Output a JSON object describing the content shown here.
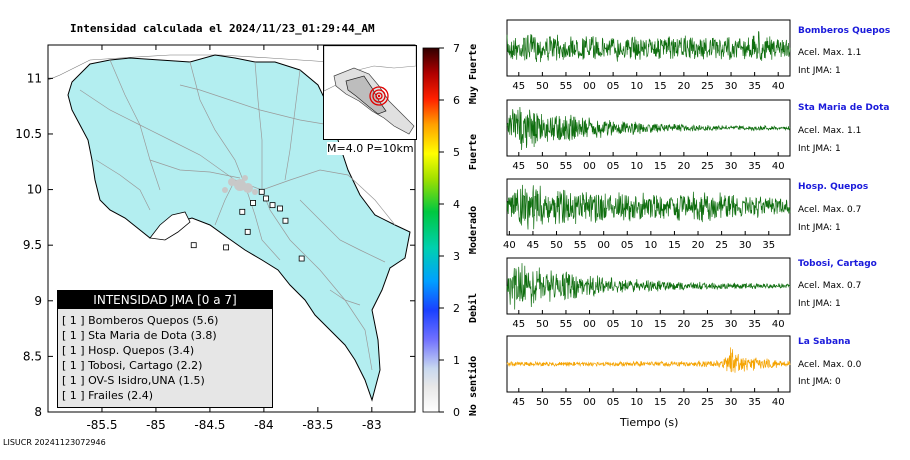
{
  "map": {
    "title": "Intensidad calculada el 2024/11/23_01:29:44_AM",
    "footer_id": "LISUCR 20241123072946",
    "inset_caption": "M=4.0 P=10km",
    "colors": {
      "land": "#b3eef0",
      "sea": "#ffffff",
      "roads": "#9a9a9a",
      "border": "#000000"
    }
  },
  "legend": {
    "title": "INTENSIDAD JMA [0 a 7]",
    "items": [
      "[ 1 ]  Bomberos Quepos (5.6)",
      "[ 1 ]  Sta Maria de Dota (3.8)",
      "[ 1 ]  Hosp. Quepos (3.4)",
      "[ 1 ]  Tobosi, Cartago (2.2)",
      "[ 1 ]  OV-S Isidro,UNA (1.5)",
      "[ 1 ]  Frailes (2.4)"
    ]
  },
  "colorbar": {
    "ticks": [
      "0",
      "1",
      "2",
      "3",
      "4",
      "5",
      "6",
      "7"
    ],
    "labels": [
      {
        "text": "No sentido",
        "value": 0.5
      },
      {
        "text": "Debil",
        "value": 2
      },
      {
        "text": "Moderado",
        "value": 3.5
      },
      {
        "text": "Fuerte",
        "value": 5
      },
      {
        "text": "Muy Fuerte",
        "value": 6.5
      }
    ]
  },
  "chart_data": [
    {
      "type": "scatter",
      "title": "Intensidad calculada el 2024/11/23_01:29:44_AM",
      "xlim": [
        -86.0,
        -82.6
      ],
      "ylim": [
        8.0,
        11.3
      ],
      "x_ticks": [
        "-85.5",
        "-85",
        "-84.5",
        "-84",
        "-83.5",
        "-83"
      ],
      "x_tick_values": [
        -85.5,
        -85.0,
        -84.5,
        -84.0,
        -83.5,
        -83.0
      ],
      "y_ticks": [
        "8",
        "8.5",
        "9",
        "9.5",
        "10",
        "10.5",
        "11"
      ],
      "y_tick_values": [
        8,
        8.5,
        9,
        9.5,
        10,
        10.5,
        11
      ],
      "stations": [
        {
          "lon": -84.02,
          "lat": 9.98
        },
        {
          "lon": -83.98,
          "lat": 9.92
        },
        {
          "lon": -84.1,
          "lat": 9.88
        },
        {
          "lon": -83.92,
          "lat": 9.86
        },
        {
          "lon": -83.85,
          "lat": 9.83
        },
        {
          "lon": -84.2,
          "lat": 9.8
        },
        {
          "lon": -83.8,
          "lat": 9.72
        },
        {
          "lon": -84.15,
          "lat": 9.62
        },
        {
          "lon": -84.65,
          "lat": 9.5
        },
        {
          "lon": -84.35,
          "lat": 9.48
        },
        {
          "lon": -83.65,
          "lat": 9.38
        }
      ]
    },
    {
      "type": "line",
      "station": "Bomberos Quepos",
      "acc_text": "Acel. Max. 1.1",
      "int_text": "Int JMA: 1",
      "color": "#0f6e0f",
      "x_ticks": [
        "45",
        "50",
        "55",
        "00",
        "05",
        "10",
        "15",
        "20",
        "25",
        "30",
        "35",
        "40"
      ],
      "x_tick_values": [
        45,
        50,
        55,
        60,
        65,
        70,
        75,
        80,
        85,
        90,
        95,
        100
      ],
      "xlim": [
        42.5,
        102.5
      ],
      "envelope": [
        [
          42.5,
          0.55
        ],
        [
          46,
          0.6
        ],
        [
          55,
          0.5
        ],
        [
          65,
          0.55
        ],
        [
          75,
          0.5
        ],
        [
          85,
          0.5
        ],
        [
          95,
          0.55
        ],
        [
          96,
          1.0
        ],
        [
          97,
          0.5
        ],
        [
          102.5,
          0.35
        ]
      ]
    },
    {
      "type": "line",
      "station": "Sta Maria de Dota",
      "acc_text": "Acel. Max. 1.1",
      "int_text": "Int JMA: 1",
      "color": "#0f6e0f",
      "x_ticks": [
        "45",
        "50",
        "55",
        "00",
        "05",
        "10",
        "15",
        "20",
        "25",
        "30",
        "35",
        "40"
      ],
      "x_tick_values": [
        45,
        50,
        55,
        60,
        65,
        70,
        75,
        80,
        85,
        90,
        95,
        100
      ],
      "xlim": [
        42.5,
        102.5
      ],
      "envelope": [
        [
          42.5,
          0.2
        ],
        [
          43.5,
          1.0
        ],
        [
          48,
          0.9
        ],
        [
          55,
          0.6
        ],
        [
          65,
          0.35
        ],
        [
          75,
          0.2
        ],
        [
          85,
          0.12
        ],
        [
          102.5,
          0.08
        ]
      ]
    },
    {
      "type": "line",
      "station": "Hosp. Quepos",
      "acc_text": "Acel. Max. 0.7",
      "int_text": "Int JMA: 1",
      "color": "#0f6e0f",
      "x_ticks": [
        "40",
        "45",
        "50",
        "55",
        "00",
        "05",
        "10",
        "15",
        "20",
        "25",
        "30",
        "35"
      ],
      "x_tick_values": [
        40,
        45,
        50,
        55,
        60,
        65,
        70,
        75,
        80,
        85,
        90,
        95
      ],
      "xlim": [
        39.5,
        99.5
      ],
      "envelope": [
        [
          39.5,
          0.3
        ],
        [
          40.5,
          0.9
        ],
        [
          45,
          1.0
        ],
        [
          55,
          0.7
        ],
        [
          65,
          0.6
        ],
        [
          75,
          0.55
        ],
        [
          80,
          0.65
        ],
        [
          90,
          0.5
        ],
        [
          99.5,
          0.35
        ]
      ]
    },
    {
      "type": "line",
      "station": "Tobosi, Cartago",
      "acc_text": "Acel. Max. 0.7",
      "int_text": "Int JMA: 1",
      "color": "#0f6e0f",
      "x_ticks": [
        "45",
        "50",
        "55",
        "00",
        "05",
        "10",
        "15",
        "20",
        "25",
        "30",
        "35",
        "40"
      ],
      "x_tick_values": [
        45,
        50,
        55,
        60,
        65,
        70,
        75,
        80,
        85,
        90,
        95,
        100
      ],
      "xlim": [
        42.5,
        102.5
      ],
      "envelope": [
        [
          42.5,
          0.3
        ],
        [
          43.5,
          1.0
        ],
        [
          50,
          0.8
        ],
        [
          58,
          0.5
        ],
        [
          68,
          0.3
        ],
        [
          80,
          0.18
        ],
        [
          102.5,
          0.1
        ]
      ]
    },
    {
      "type": "line",
      "station": "La Sabana",
      "acc_text": "Acel. Max. 0.0",
      "int_text": "Int JMA: 0",
      "color": "#f5a300",
      "xlabel": "Tiempo (s)",
      "x_ticks": [
        "45",
        "50",
        "55",
        "00",
        "05",
        "10",
        "15",
        "20",
        "25",
        "30",
        "35",
        "40"
      ],
      "x_tick_values": [
        45,
        50,
        55,
        60,
        65,
        70,
        75,
        80,
        85,
        90,
        95,
        100
      ],
      "xlim": [
        42.5,
        102.5
      ],
      "envelope": [
        [
          42.5,
          0.1
        ],
        [
          60,
          0.1
        ],
        [
          80,
          0.12
        ],
        [
          88,
          0.15
        ],
        [
          89.5,
          0.5
        ],
        [
          90,
          1.0
        ],
        [
          91,
          0.5
        ],
        [
          93,
          0.3
        ],
        [
          96,
          0.25
        ],
        [
          102.5,
          0.12
        ]
      ]
    }
  ]
}
